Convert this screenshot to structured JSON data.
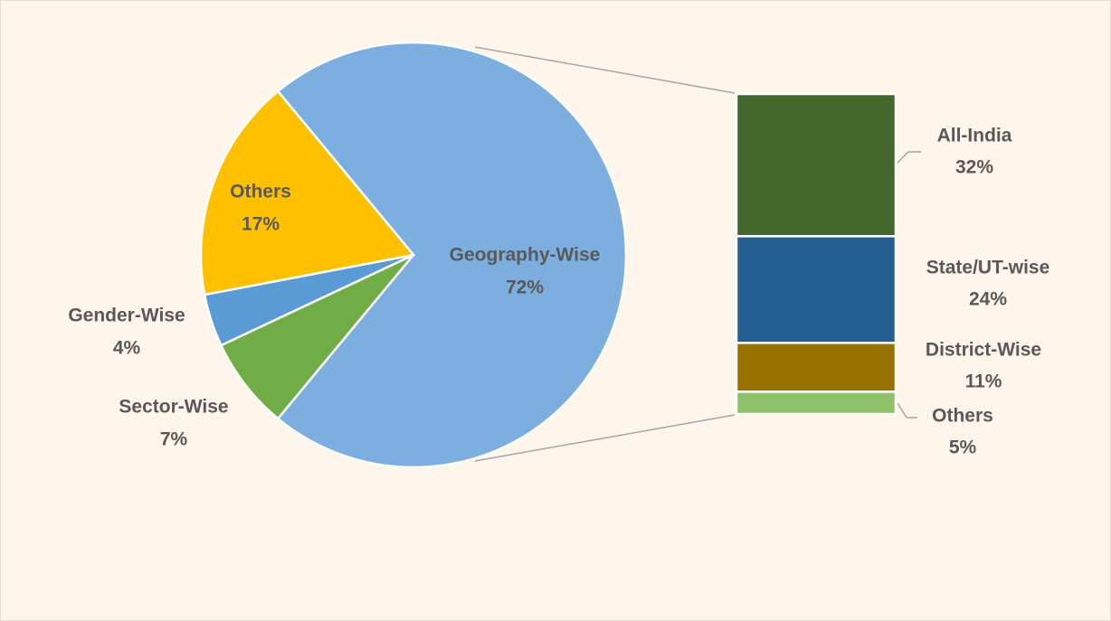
{
  "chart_data": [
    {
      "type": "pie",
      "categories": [
        "Geography-Wise",
        "Sector-Wise",
        "Gender-Wise",
        "Others"
      ],
      "values": [
        72,
        7,
        4,
        17
      ],
      "value_labels": [
        "72%",
        "7%",
        "4%",
        "17%"
      ],
      "colors": [
        "#7caedf",
        "#70ad47",
        "#5b9bd5",
        "#ffc000"
      ]
    },
    {
      "type": "bar",
      "categories": [
        "All-India",
        "State/UT-wise",
        "District-Wise",
        "Others"
      ],
      "values": [
        32,
        24,
        11,
        5
      ],
      "value_labels": [
        "32%",
        "24%",
        "11%",
        "5%"
      ],
      "colors": [
        "#43682b",
        "#255e91",
        "#997300",
        "#8fc16a"
      ]
    }
  ]
}
